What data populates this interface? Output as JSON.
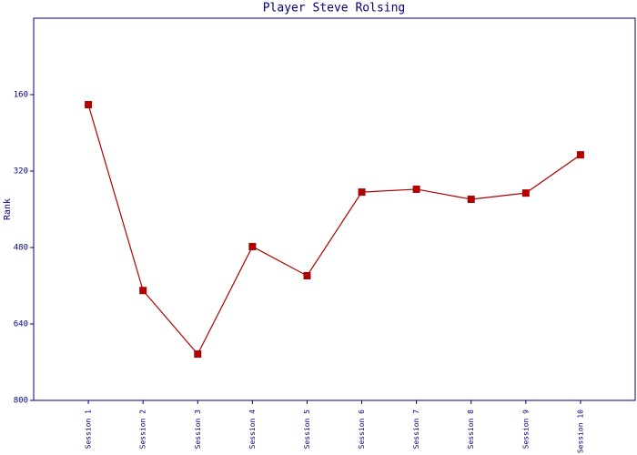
{
  "chart_data": {
    "type": "line",
    "title": "Player Steve Rolsing",
    "y_label": "Rank",
    "categories": [
      "Session 1",
      "Session 2",
      "Session 3",
      "Session 4",
      "Session 5",
      "Session 6",
      "Session 7",
      "Session 8",
      "Session 9",
      "Session 10"
    ],
    "series": [
      {
        "name": "Rank",
        "color": "#b00000",
        "values": [
          181,
          570,
          703,
          478,
          539,
          364,
          358,
          379,
          366,
          286
        ]
      }
    ],
    "ylim": [
      0,
      800
    ],
    "y_inverted": true,
    "yticks": [
      160,
      320,
      480,
      640,
      800
    ],
    "grid": false
  }
}
